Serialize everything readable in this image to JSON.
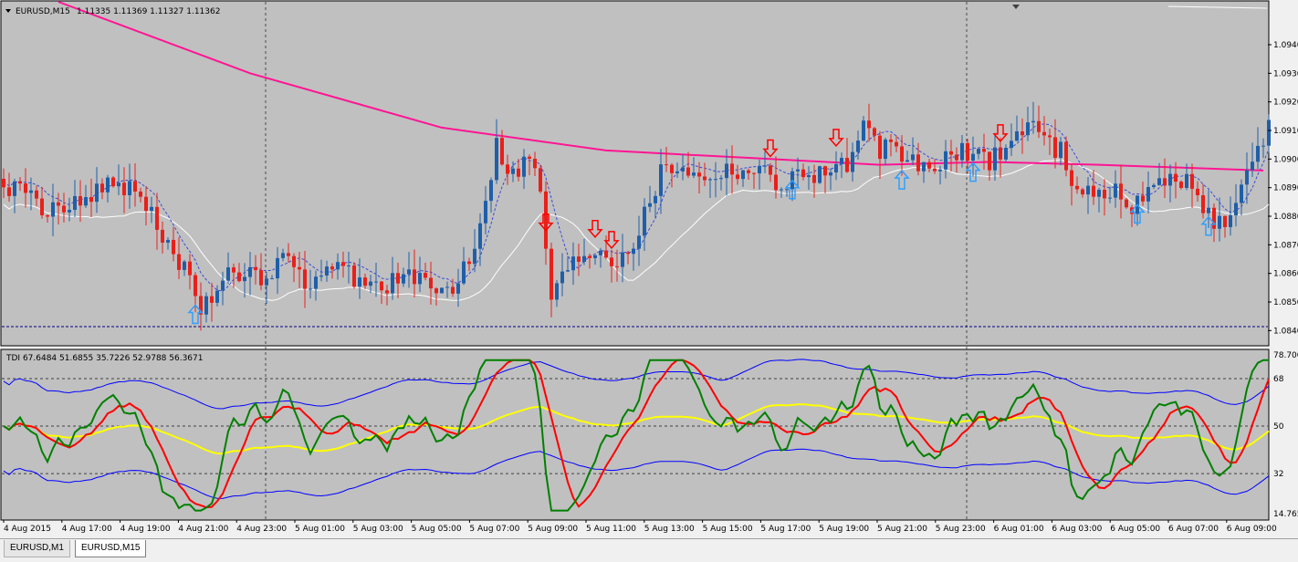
{
  "window": {
    "symbol_label": "EURUSD,M15",
    "price_readout": "1.11335 1.11369 1.11327 1.11362",
    "indicator_label": "TDI 67.6484 51.6855 35.7226 52.9788 56.3671"
  },
  "tabs": [
    {
      "label": "EURUSD,M1",
      "active": false
    },
    {
      "label": "EURUSD,M15",
      "active": true
    }
  ],
  "colors": {
    "plot_bg": "#c0c0c0",
    "bull": "#1f5fa8",
    "bear": "#e8201a",
    "ma_long": "#ff1493",
    "band_white": "#ffffff",
    "band_dash": "#3a4bd8",
    "up_arrow": "#2f9fff",
    "down_arrow": "#ff0000",
    "tdi_green": "#008000",
    "tdi_red": "#ff0000",
    "tdi_yellow": "#ffff00",
    "tdi_blue": "#0000ff"
  },
  "chart_data": [
    {
      "type": "candlestick",
      "price_axis": {
        "range": [
          1.0835,
          1.0955
        ],
        "ticks": [
          "1.0940",
          "1.0930",
          "1.0920",
          "1.0910",
          "1.0900",
          "1.0890",
          "1.0880",
          "1.0870",
          "1.0860",
          "1.0850",
          "1.0840"
        ]
      },
      "time_axis": {
        "ticks": [
          "4 Aug 2015",
          "4 Aug 17:00",
          "4 Aug 19:00",
          "4 Aug 21:00",
          "4 Aug 23:00",
          "5 Aug 01:00",
          "5 Aug 03:00",
          "5 Aug 05:00",
          "5 Aug 07:00",
          "5 Aug 09:00",
          "5 Aug 11:00",
          "5 Aug 13:00",
          "5 Aug 15:00",
          "5 Aug 17:00",
          "5 Aug 19:00",
          "5 Aug 21:00",
          "5 Aug 23:00",
          "6 Aug 01:00",
          "6 Aug 03:00",
          "6 Aug 05:00",
          "6 Aug 07:00",
          "6 Aug 09:00"
        ]
      },
      "anchors": [
        [
          0,
          1.089
        ],
        [
          5,
          1.0887
        ],
        [
          10,
          1.088
        ],
        [
          16,
          1.0889
        ],
        [
          22,
          1.0891
        ],
        [
          26,
          1.0883
        ],
        [
          30,
          1.0869
        ],
        [
          34,
          1.086
        ],
        [
          36,
          1.0849
        ],
        [
          40,
          1.0858
        ],
        [
          46,
          1.0859
        ],
        [
          52,
          1.0864
        ],
        [
          56,
          1.0855
        ],
        [
          62,
          1.0862
        ],
        [
          66,
          1.0856
        ],
        [
          70,
          1.0857
        ],
        [
          74,
          1.0859
        ],
        [
          78,
          1.0854
        ],
        [
          82,
          1.0855
        ],
        [
          86,
          1.0871
        ],
        [
          90,
          1.0905
        ],
        [
          93,
          1.0895
        ],
        [
          96,
          1.0901
        ],
        [
          98,
          1.0889
        ],
        [
          100,
          1.0852
        ],
        [
          103,
          1.0862
        ],
        [
          106,
          1.0868
        ],
        [
          109,
          1.0869
        ],
        [
          112,
          1.0865
        ],
        [
          116,
          1.0875
        ],
        [
          120,
          1.0896
        ],
        [
          124,
          1.0899
        ],
        [
          127,
          1.0893
        ],
        [
          130,
          1.0896
        ],
        [
          134,
          1.0897
        ],
        [
          138,
          1.0896
        ],
        [
          142,
          1.0892
        ],
        [
          146,
          1.0895
        ],
        [
          150,
          1.0896
        ],
        [
          154,
          1.0898
        ],
        [
          157,
          1.091
        ],
        [
          160,
          1.0904
        ],
        [
          164,
          1.0901
        ],
        [
          168,
          1.0897
        ],
        [
          172,
          1.0899
        ],
        [
          176,
          1.0903
        ],
        [
          180,
          1.09
        ],
        [
          184,
          1.0906
        ],
        [
          187,
          1.0914
        ],
        [
          190,
          1.0907
        ],
        [
          193,
          1.0903
        ],
        [
          196,
          1.089
        ],
        [
          199,
          1.0885
        ],
        [
          202,
          1.0889
        ],
        [
          206,
          1.0884
        ],
        [
          210,
          1.089
        ],
        [
          214,
          1.0896
        ],
        [
          218,
          1.0887
        ],
        [
          221,
          1.0878
        ],
        [
          225,
          1.0882
        ],
        [
          228,
          1.0902
        ],
        [
          231,
          1.091
        ]
      ],
      "long_ma": [
        [
          10,
          1.0955
        ],
        [
          45,
          1.093
        ],
        [
          80,
          1.0911
        ],
        [
          110,
          1.0903
        ],
        [
          140,
          1.09
        ],
        [
          160,
          1.0898
        ],
        [
          180,
          1.0899
        ],
        [
          200,
          1.0898
        ],
        [
          230,
          1.0896
        ]
      ],
      "up_arrows": [
        35,
        144,
        164,
        177,
        207,
        220
      ],
      "down_arrows": [
        99,
        108,
        111,
        140,
        152,
        182
      ]
    },
    {
      "type": "line",
      "name": "TDI",
      "y_axis": {
        "range": [
          14.7659,
          78.7008
        ],
        "ticks": [
          "78.7008",
          "68",
          "50",
          "32",
          "14.7659"
        ]
      },
      "levels": [
        68,
        50,
        32
      ]
    }
  ]
}
